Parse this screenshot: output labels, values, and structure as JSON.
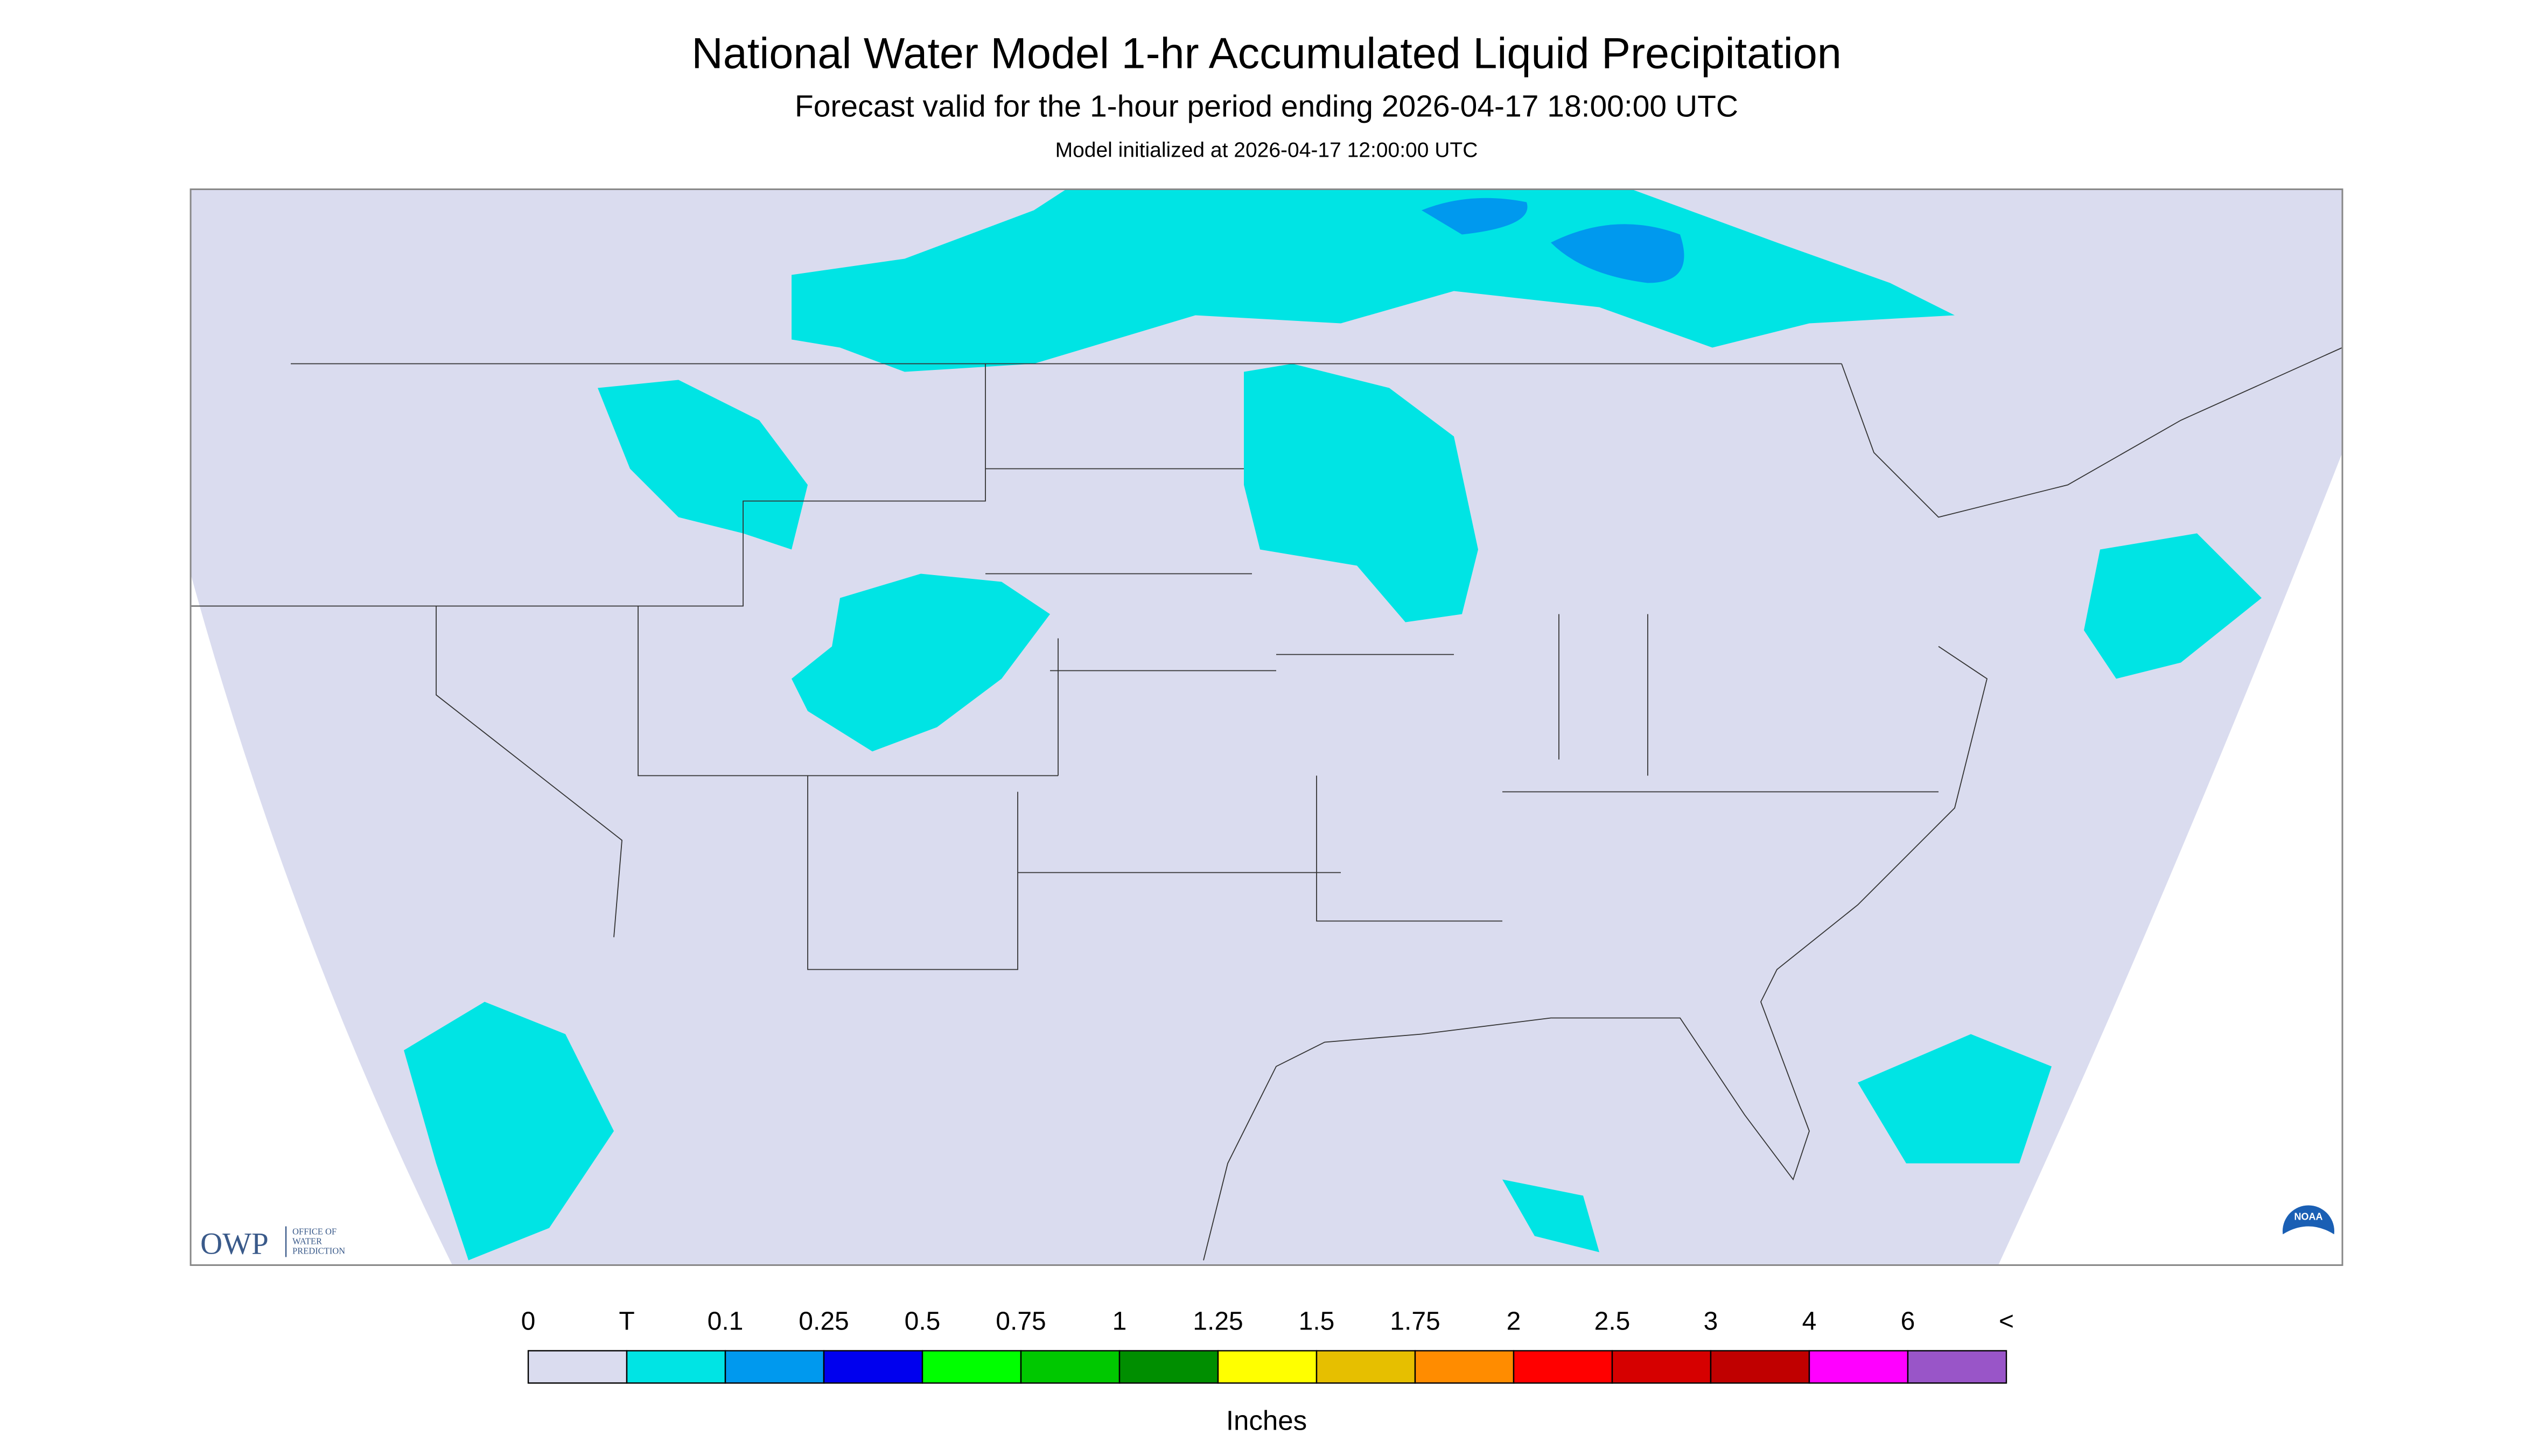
{
  "header": {
    "title": "National Water Model 1-hr Accumulated Liquid Precipitation",
    "subtitle": "Forecast valid for the 1-hour period ending 2026-04-17 18:00:00 UTC",
    "init": "Model initialized at 2026-04-17 12:00:00 UTC"
  },
  "logos": {
    "owp": "OWP",
    "owp_name": [
      "OFFICE OF",
      "WATER",
      "PREDICTION"
    ],
    "noaa": "NOAA"
  },
  "legend": {
    "labels": [
      "0",
      "T",
      "0.1",
      "0.25",
      "0.5",
      "0.75",
      "1",
      "1.25",
      "1.5",
      "1.75",
      "2",
      "2.5",
      "3",
      "4",
      "6",
      "<"
    ],
    "colors": [
      "#dadcef",
      "#00e4e4",
      "#0099ee",
      "#0000ee",
      "#00ff00",
      "#00c800",
      "#008e00",
      "#ffff00",
      "#e6bf00",
      "#ff8c00",
      "#ff0000",
      "#d60000",
      "#c00000",
      "#ff00ff",
      "#9955c8"
    ],
    "unit": "Inches"
  }
}
